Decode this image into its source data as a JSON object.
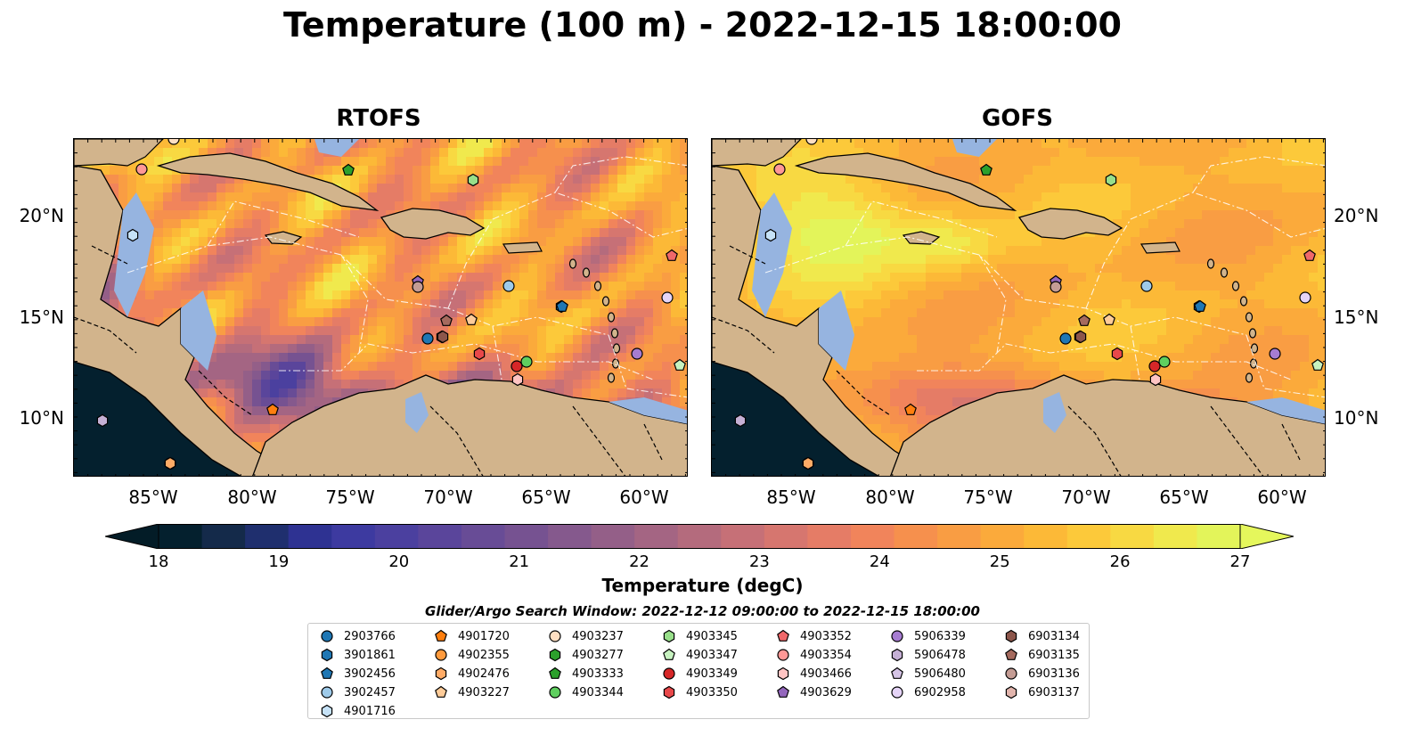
{
  "title": "Temperature (100 m) - 2022-12-15 18:00:00",
  "panels": [
    {
      "name": "RTOFS",
      "field": "rtofs"
    },
    {
      "name": "GOFS",
      "field": "gofs"
    }
  ],
  "lat_ticks": [
    "20°N",
    "15°N",
    "10°N"
  ],
  "lon_ticks": [
    "85°W",
    "80°W",
    "75°W",
    "70°W",
    "65°W",
    "60°W"
  ],
  "colorbar": {
    "label": "Temperature (degC)",
    "ticks": [
      "18",
      "19",
      "20",
      "21",
      "22",
      "23",
      "24",
      "25",
      "26",
      "27"
    ],
    "range": [
      18,
      27
    ],
    "colors": [
      "#04202e",
      "#142a4a",
      "#1f2f6e",
      "#2e3292",
      "#3d3aa0",
      "#4b409f",
      "#5a459b",
      "#684c96",
      "#765291",
      "#85598d",
      "#945f88",
      "#a46583",
      "#b46b7d",
      "#c67077",
      "#d6766f",
      "#e57c66",
      "#f1845b",
      "#f6904d",
      "#f99d43",
      "#fbaa3b",
      "#fcb937",
      "#fcc93a",
      "#f8d942",
      "#f0e94d",
      "#e3f45a"
    ],
    "over_color": "#e5f75c",
    "under_color": "#031c27"
  },
  "legend": {
    "title": "Glider/Argo Search Window: 2022-12-12 09:00:00 to 2022-12-15 18:00:00",
    "items": [
      {
        "id": "2903766",
        "marker": "circle",
        "color": "#1f77b4"
      },
      {
        "id": "3901861",
        "marker": "hexagon",
        "color": "#1f77b4"
      },
      {
        "id": "3902456",
        "marker": "pentagon",
        "color": "#1f77b4"
      },
      {
        "id": "3902457",
        "marker": "circle",
        "color": "#9ecae9"
      },
      {
        "id": "4901716",
        "marker": "hexagon",
        "color": "#c6e2f7"
      },
      {
        "id": "4901720",
        "marker": "pentagon",
        "color": "#ff7f0e"
      },
      {
        "id": "4902355",
        "marker": "circle",
        "color": "#ff9a3c"
      },
      {
        "id": "4902476",
        "marker": "hexagon",
        "color": "#ffab66"
      },
      {
        "id": "4903227",
        "marker": "pentagon",
        "color": "#ffcc99"
      },
      {
        "id": "4903237",
        "marker": "circle",
        "color": "#ffdfc2"
      },
      {
        "id": "4903277",
        "marker": "hexagon",
        "color": "#2ca02c"
      },
      {
        "id": "4903333",
        "marker": "pentagon",
        "color": "#2ca02c"
      },
      {
        "id": "4903344",
        "marker": "circle",
        "color": "#5fcf5f"
      },
      {
        "id": "4903345",
        "marker": "hexagon",
        "color": "#98df8a"
      },
      {
        "id": "4903347",
        "marker": "pentagon",
        "color": "#c7f2c0"
      },
      {
        "id": "4903349",
        "marker": "circle",
        "color": "#d62728"
      },
      {
        "id": "4903350",
        "marker": "hexagon",
        "color": "#e8484a"
      },
      {
        "id": "4903352",
        "marker": "pentagon",
        "color": "#f0686a"
      },
      {
        "id": "4903354",
        "marker": "circle",
        "color": "#ff9896"
      },
      {
        "id": "4903466",
        "marker": "hexagon",
        "color": "#ffc4c3"
      },
      {
        "id": "4903629",
        "marker": "pentagon",
        "color": "#9467bd"
      },
      {
        "id": "5906339",
        "marker": "circle",
        "color": "#a67cd1"
      },
      {
        "id": "5906478",
        "marker": "hexagon",
        "color": "#c5b0d5"
      },
      {
        "id": "5906480",
        "marker": "pentagon",
        "color": "#d5c4e6"
      },
      {
        "id": "6902958",
        "marker": "circle",
        "color": "#e5d4f7"
      },
      {
        "id": "6903134",
        "marker": "hexagon",
        "color": "#8c564b"
      },
      {
        "id": "6903135",
        "marker": "pentagon",
        "color": "#a56a5e"
      },
      {
        "id": "6903136",
        "marker": "circle",
        "color": "#c49c94"
      },
      {
        "id": "6903137",
        "marker": "hexagon",
        "color": "#e2b5ad"
      }
    ]
  },
  "map_colors": {
    "land": "#d2b48c",
    "shallow": "#96b4e0",
    "deep_pacific": "#04202e"
  }
}
